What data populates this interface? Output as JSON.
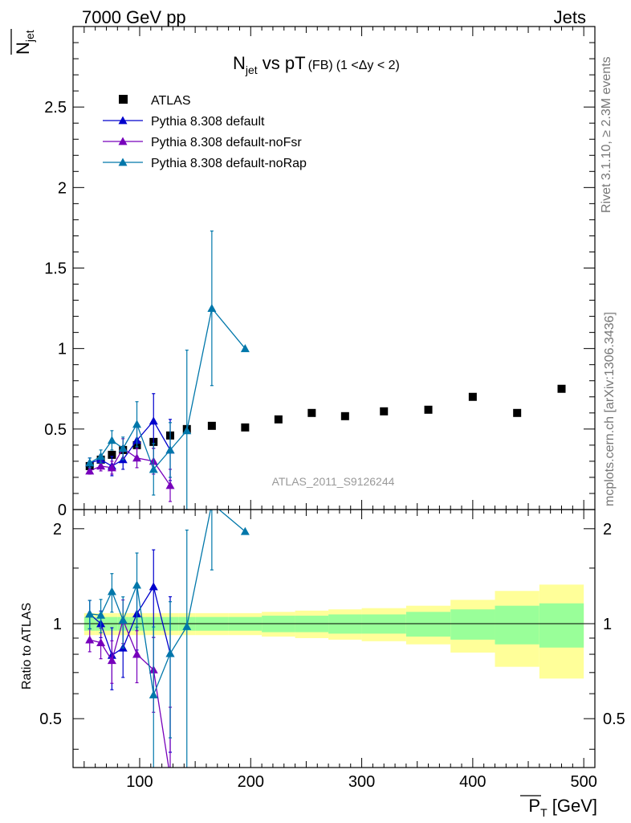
{
  "header": {
    "left_label": "7000 GeV pp",
    "right_label": "Jets",
    "title_main": "N",
    "title_sub": "jet",
    "title_mid": " vs pT",
    "title_tag": "(FB)",
    "title_range": "(1 <Δy < 2)"
  },
  "side": {
    "rivet_text": "Rivet 3.1.10, ≥ 2.3M events",
    "mcplots_text": "mcplots.cern.ch [arXiv:1306.3436]"
  },
  "watermark": "ATLAS_2011_S9126244",
  "axes": {
    "top_ylabel_main": "N",
    "top_ylabel_sub": "jet",
    "bottom_ylabel": "Ratio to ATLAS",
    "xlabel_main": "P",
    "xlabel_sub": "T",
    "xlabel_unit": " [GeV]"
  },
  "legend": [
    {
      "label": "ATLAS",
      "marker": "square",
      "color": "#000000"
    },
    {
      "label": "Pythia 8.308 default",
      "marker": "triangle",
      "color": "#0000cc"
    },
    {
      "label": "Pythia 8.308 default-noFsr",
      "marker": "triangle",
      "color": "#7700bb"
    },
    {
      "label": "Pythia 8.308 default-noRap",
      "marker": "triangle",
      "color": "#0077aa"
    }
  ],
  "chart_data": {
    "type": "scatter",
    "xlim": [
      40,
      510
    ],
    "top_ylim": [
      0,
      3.0
    ],
    "bottom_ylim": [
      0.35,
      2.3
    ],
    "bottom_log": true,
    "x_ticks": [
      100,
      200,
      300,
      400,
      500
    ],
    "top_y_ticks": [
      {
        "v": 0,
        "label": "0"
      },
      {
        "v": 0.5,
        "label": "0.5"
      },
      {
        "v": 1,
        "label": "1"
      },
      {
        "v": 1.5,
        "label": "1.5"
      },
      {
        "v": 2,
        "label": "2"
      },
      {
        "v": 2.5,
        "label": "2.5"
      }
    ],
    "bottom_y_ticks": [
      {
        "v": 0.5,
        "label": "0.5"
      },
      {
        "v": 1,
        "label": "1"
      },
      {
        "v": 2,
        "label": "2"
      }
    ],
    "atlas": {
      "name": "ATLAS",
      "x": [
        55,
        65,
        75,
        85,
        97.5,
        112.5,
        127.5,
        142.5,
        165,
        195,
        225,
        255,
        285,
        320,
        360,
        400,
        440,
        480
      ],
      "y": [
        0.27,
        0.31,
        0.34,
        0.37,
        0.4,
        0.42,
        0.46,
        0.5,
        0.52,
        0.51,
        0.56,
        0.6,
        0.58,
        0.61,
        0.62,
        0.7,
        0.6,
        0.75
      ],
      "edges": [
        50,
        60,
        70,
        80,
        90,
        105,
        120,
        135,
        150,
        180,
        210,
        240,
        270,
        300,
        340,
        380,
        420,
        460,
        500
      ],
      "band_inner": [
        0.05,
        0.05,
        0.05,
        0.05,
        0.05,
        0.05,
        0.05,
        0.05,
        0.05,
        0.05,
        0.06,
        0.06,
        0.07,
        0.07,
        0.09,
        0.11,
        0.14,
        0.16
      ],
      "band_outer": [
        0.08,
        0.08,
        0.08,
        0.08,
        0.08,
        0.08,
        0.08,
        0.08,
        0.08,
        0.08,
        0.09,
        0.1,
        0.11,
        0.12,
        0.14,
        0.19,
        0.27,
        0.33
      ]
    },
    "series": [
      {
        "name": "Pythia 8.308 default",
        "color": "#0000cc",
        "x": [
          55,
          65,
          75,
          85,
          97.5,
          112.5,
          127.5
        ],
        "y": [
          0.29,
          0.31,
          0.27,
          0.31,
          0.43,
          0.55,
          0.37
        ],
        "err": [
          0.03,
          0.03,
          0.06,
          0.06,
          0.1,
          0.17,
          0.19
        ]
      },
      {
        "name": "Pythia 8.308 default-noFsr",
        "color": "#7700bb",
        "x": [
          55,
          65,
          75,
          85,
          97.5,
          112.5,
          127.5
        ],
        "y": [
          0.24,
          0.27,
          0.26,
          0.38,
          0.32,
          0.3,
          0.15
        ],
        "err": [
          0.02,
          0.03,
          0.04,
          0.06,
          0.06,
          0.08,
          0.1
        ]
      },
      {
        "name": "Pythia 8.308 default-noRap",
        "color": "#0077aa",
        "x": [
          55,
          65,
          75,
          85,
          97.5,
          112.5,
          127.5,
          142.5,
          165,
          195
        ],
        "y": [
          0.29,
          0.33,
          0.43,
          0.38,
          0.53,
          0.25,
          0.37,
          0.49,
          1.25,
          1.0
        ],
        "err": [
          0.03,
          0.04,
          0.06,
          0.07,
          0.14,
          0.16,
          0.17,
          0.5,
          0.48,
          0.0
        ]
      }
    ]
  }
}
